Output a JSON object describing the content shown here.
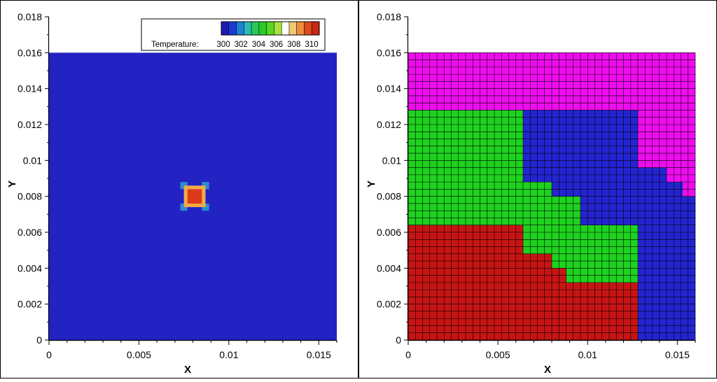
{
  "chart_data": [
    {
      "type": "heatmap",
      "subtype": "contour",
      "xlabel": "X",
      "ylabel": "Y",
      "xlim": [
        0,
        0.016
      ],
      "ylim": [
        0,
        0.018
      ],
      "domain": {
        "x": [
          0,
          0.016
        ],
        "y": [
          0,
          0.016
        ]
      },
      "xticks": [
        0,
        0.005,
        0.01,
        0.015
      ],
      "xtick_labels": [
        "0",
        "0.005",
        "0.01",
        "0.015"
      ],
      "yticks": [
        0,
        0.002,
        0.004,
        0.006,
        0.008,
        0.01,
        0.012,
        0.014,
        0.016,
        0.018
      ],
      "ytick_labels": [
        "0",
        "0.002",
        "0.004",
        "0.006",
        "0.008",
        "0.01",
        "0.012",
        "0.014",
        "0.016",
        "0.018"
      ],
      "legend": {
        "label": "Temperature:",
        "ticks": [
          "300",
          "302",
          "304",
          "306",
          "308",
          "310"
        ],
        "placement": "top-right"
      },
      "colorbar_colors": [
        "#1a1ab4",
        "#1e3ad2",
        "#1e80d6",
        "#28bcb4",
        "#2ec85a",
        "#28cc28",
        "#5ad428",
        "#a8e03c",
        "#ffffff",
        "#f0c870",
        "#f08c3c",
        "#dc4a1e",
        "#c82814"
      ],
      "background": {
        "value": 300,
        "color": "#2323c3"
      },
      "hot_spot": {
        "cells": [
          {
            "x": [
              0.0075,
              0.0087
            ],
            "y": [
              0.0074,
              0.0086
            ],
            "value": 307,
            "color": "#f2a94a"
          },
          {
            "x": [
              0.0077,
              0.0085
            ],
            "y": [
              0.0076,
              0.0084
            ],
            "value": 310,
            "color": "#dd3a1a"
          }
        ],
        "corners": [
          {
            "x": [
              0.0073,
              0.0077
            ],
            "y": [
              0.0084,
              0.0088
            ],
            "value": 302,
            "color": "#2d8cd0"
          },
          {
            "x": [
              0.0085,
              0.0089
            ],
            "y": [
              0.0084,
              0.0088
            ],
            "value": 302,
            "color": "#2d8cd0"
          },
          {
            "x": [
              0.0073,
              0.0077
            ],
            "y": [
              0.0072,
              0.0076
            ],
            "value": 302,
            "color": "#2d8cd0"
          },
          {
            "x": [
              0.0085,
              0.0089
            ],
            "y": [
              0.0072,
              0.0076
            ],
            "value": 302,
            "color": "#2d8cd0"
          }
        ]
      }
    },
    {
      "type": "heatmap",
      "subtype": "domain-decomposition-grid",
      "xlabel": "X",
      "ylabel": "Y",
      "xlim": [
        0,
        0.016
      ],
      "ylim": [
        0,
        0.018
      ],
      "domain": {
        "x": [
          0,
          0.016
        ],
        "y": [
          0,
          0.016
        ]
      },
      "grid_cells": 40,
      "xticks": [
        0,
        0.005,
        0.01,
        0.015
      ],
      "xtick_labels": [
        "0",
        "0.005",
        "0.01",
        "0.015"
      ],
      "yticks": [
        0,
        0.002,
        0.004,
        0.006,
        0.008,
        0.01,
        0.012,
        0.014,
        0.016,
        0.018
      ],
      "ytick_labels": [
        "0",
        "0.002",
        "0.004",
        "0.006",
        "0.008",
        "0.01",
        "0.012",
        "0.014",
        "0.016",
        "0.018"
      ],
      "regions": [
        {
          "name": "magenta",
          "color": "#f00cf0",
          "polygon": [
            [
              0,
              0.016
            ],
            [
              0.016,
              0.016
            ],
            [
              0.016,
              0.008
            ],
            [
              0.0153,
              0.008
            ],
            [
              0.0153,
              0.0088
            ],
            [
              0.0144,
              0.0088
            ],
            [
              0.0144,
              0.0096
            ],
            [
              0.0128,
              0.0096
            ],
            [
              0.0128,
              0.0128
            ],
            [
              0,
              0.0128
            ]
          ]
        },
        {
          "name": "blue",
          "color": "#2424d2",
          "polygon": [
            [
              0.0064,
              0.0128
            ],
            [
              0.0128,
              0.0128
            ],
            [
              0.0128,
              0.0096
            ],
            [
              0.0144,
              0.0096
            ],
            [
              0.0144,
              0.0088
            ],
            [
              0.0153,
              0.0088
            ],
            [
              0.0153,
              0.008
            ],
            [
              0.016,
              0.008
            ],
            [
              0.016,
              0
            ],
            [
              0.0128,
              0
            ],
            [
              0.0128,
              0.0064
            ],
            [
              0.0096,
              0.0064
            ],
            [
              0.0096,
              0.008
            ],
            [
              0.008,
              0.008
            ],
            [
              0.008,
              0.0088
            ],
            [
              0.0064,
              0.0088
            ]
          ]
        },
        {
          "name": "green",
          "color": "#1ed21e",
          "polygon": [
            [
              0,
              0.0128
            ],
            [
              0.0064,
              0.0128
            ],
            [
              0.0064,
              0.0088
            ],
            [
              0.008,
              0.0088
            ],
            [
              0.008,
              0.008
            ],
            [
              0.0096,
              0.008
            ],
            [
              0.0096,
              0.0064
            ],
            [
              0.0128,
              0.0064
            ],
            [
              0.0128,
              0.0032
            ],
            [
              0.0088,
              0.0032
            ],
            [
              0.0088,
              0.004
            ],
            [
              0.008,
              0.004
            ],
            [
              0.008,
              0.0048
            ],
            [
              0.0064,
              0.0048
            ],
            [
              0.0064,
              0.0064
            ],
            [
              0,
              0.0064
            ]
          ]
        },
        {
          "name": "red",
          "color": "#c81414",
          "polygon": [
            [
              0,
              0.0064
            ],
            [
              0.0064,
              0.0064
            ],
            [
              0.0064,
              0.0048
            ],
            [
              0.008,
              0.0048
            ],
            [
              0.008,
              0.004
            ],
            [
              0.0088,
              0.004
            ],
            [
              0.0088,
              0.0032
            ],
            [
              0.0128,
              0.0032
            ],
            [
              0.0128,
              0
            ],
            [
              0,
              0
            ]
          ]
        }
      ]
    }
  ]
}
